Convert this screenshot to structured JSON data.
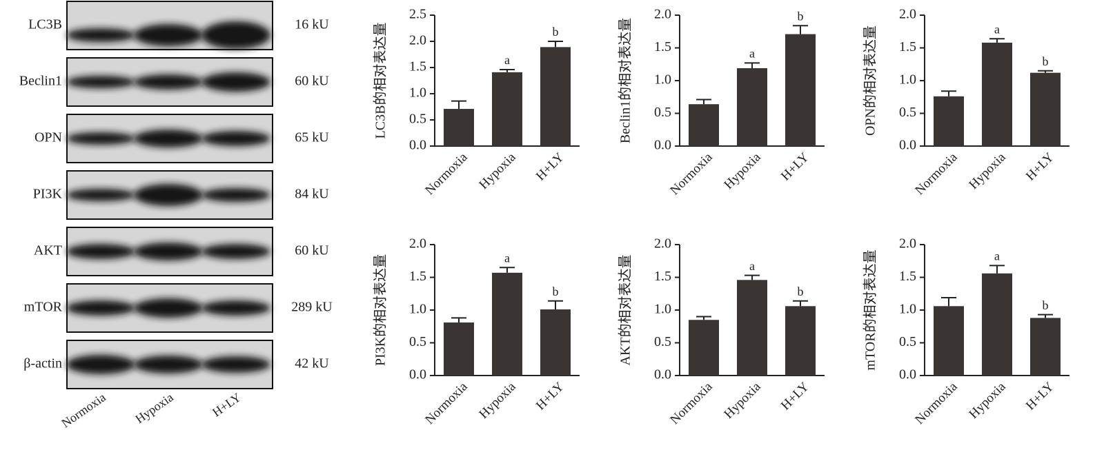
{
  "blot": {
    "proteins": [
      "LC3B",
      "Beclin1",
      "OPN",
      "PI3K",
      "AKT",
      "mTOR",
      "β-actin"
    ],
    "sizes": [
      "16 kU",
      "60 kU",
      "65 kU",
      "84 kU",
      "60 kU",
      "289 kU",
      "42 kU"
    ],
    "lanes": [
      "Normoxia",
      "Hypoxia",
      "H+LY"
    ]
  },
  "chart_data": [
    {
      "type": "bar",
      "ylabel": "LC3B的相对表达量",
      "categories": [
        "Normoxia",
        "Hypoxia",
        "H+LY"
      ],
      "color": "#3a3533",
      "values": [
        0.71,
        1.41,
        1.89
      ],
      "errors": [
        0.15,
        0.05,
        0.11
      ],
      "annotations": [
        null,
        "a",
        "b"
      ],
      "ylim": [
        0,
        2.5
      ],
      "yticks": [
        {
          "value": 0,
          "label": "0.0"
        },
        0.5,
        {
          "value": 1,
          "label": "1.0"
        },
        1.5,
        {
          "value": 2,
          "label": "2.0"
        },
        2.5
      ]
    },
    {
      "type": "bar",
      "ylabel": "Beclin1的相对表达量",
      "categories": [
        "Normoxia",
        "Hypoxia",
        "H+LY"
      ],
      "color": "#3a3533",
      "values": [
        0.64,
        1.19,
        1.71
      ],
      "errors": [
        0.07,
        0.08,
        0.13
      ],
      "annotations": [
        null,
        "a",
        "b"
      ],
      "ylim": [
        0,
        2
      ],
      "yticks": [
        {
          "value": 0,
          "label": "0.0"
        },
        0.5,
        {
          "value": 1,
          "label": "1.0"
        },
        1.5,
        {
          "value": 2,
          "label": "2.0"
        }
      ]
    },
    {
      "type": "bar",
      "ylabel": "OPN的相对表达量",
      "categories": [
        "Normoxia",
        "Hypoxia",
        "H+LY"
      ],
      "color": "#3a3533",
      "values": [
        0.76,
        1.58,
        1.12
      ],
      "errors": [
        0.08,
        0.06,
        0.03
      ],
      "annotations": [
        null,
        "a",
        "b"
      ],
      "ylim": [
        0,
        2
      ],
      "yticks": [
        {
          "value": 0,
          "label": "0.0"
        },
        0.5,
        {
          "value": 1,
          "label": "1.0"
        },
        1.5,
        {
          "value": 2,
          "label": "2.0"
        }
      ]
    },
    {
      "type": "bar",
      "ylabel": "PI3K的相对表达量",
      "categories": [
        "Normoxia",
        "Hypoxia",
        "H+LY"
      ],
      "color": "#3a3533",
      "values": [
        0.81,
        1.57,
        1.01
      ],
      "errors": [
        0.07,
        0.08,
        0.13
      ],
      "annotations": [
        null,
        "a",
        "b"
      ],
      "ylim": [
        0,
        2
      ],
      "yticks": [
        {
          "value": 0,
          "label": "0.0"
        },
        0.5,
        {
          "value": 1,
          "label": "1.0"
        },
        1.5,
        {
          "value": 2,
          "label": "2.0"
        }
      ]
    },
    {
      "type": "bar",
      "ylabel": "AKT的相对表达量",
      "categories": [
        "Normoxia",
        "Hypoxia",
        "H+LY"
      ],
      "color": "#3a3533",
      "values": [
        0.85,
        1.46,
        1.06
      ],
      "errors": [
        0.05,
        0.07,
        0.08
      ],
      "annotations": [
        null,
        "a",
        "b"
      ],
      "ylim": [
        0,
        2
      ],
      "yticks": [
        {
          "value": 0,
          "label": "0.0"
        },
        0.5,
        {
          "value": 1,
          "label": "1.0"
        },
        1.5,
        {
          "value": 2,
          "label": "2.0"
        }
      ]
    },
    {
      "type": "bar",
      "ylabel": "mTOR的相对表达量",
      "categories": [
        "Normoxia",
        "Hypoxia",
        "H+LY"
      ],
      "color": "#3a3533",
      "values": [
        1.06,
        1.56,
        0.88
      ],
      "errors": [
        0.13,
        0.12,
        0.05
      ],
      "annotations": [
        null,
        "a",
        "b"
      ],
      "ylim": [
        0,
        2
      ],
      "yticks": [
        {
          "value": 0,
          "label": "0.0"
        },
        0.5,
        {
          "value": 1,
          "label": "1.0"
        },
        1.5,
        {
          "value": 2,
          "label": "2.0"
        }
      ]
    }
  ]
}
